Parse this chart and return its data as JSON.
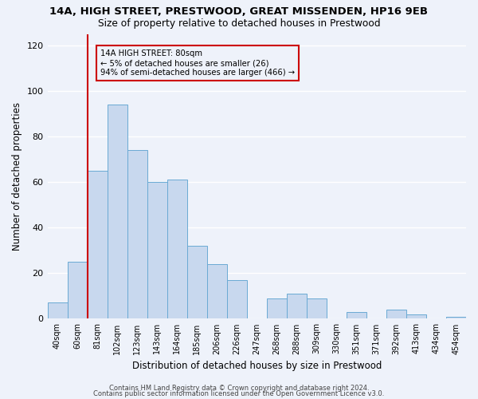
{
  "title": "14A, HIGH STREET, PRESTWOOD, GREAT MISSENDEN, HP16 9EB",
  "subtitle": "Size of property relative to detached houses in Prestwood",
  "xlabel": "Distribution of detached houses by size in Prestwood",
  "ylabel": "Number of detached properties",
  "bar_labels": [
    "40sqm",
    "60sqm",
    "81sqm",
    "102sqm",
    "123sqm",
    "143sqm",
    "164sqm",
    "185sqm",
    "206sqm",
    "226sqm",
    "247sqm",
    "268sqm",
    "288sqm",
    "309sqm",
    "330sqm",
    "351sqm",
    "371sqm",
    "392sqm",
    "413sqm",
    "434sqm",
    "454sqm"
  ],
  "bar_heights": [
    7,
    25,
    65,
    94,
    74,
    60,
    61,
    32,
    24,
    17,
    0,
    9,
    11,
    9,
    0,
    3,
    0,
    4,
    2,
    0,
    1
  ],
  "bar_color": "#c8d8ee",
  "bar_edge_color": "#6aaad4",
  "vline_x_index": 2,
  "vline_color": "#cc0000",
  "annotation_title": "14A HIGH STREET: 80sqm",
  "annotation_line1": "← 5% of detached houses are smaller (26)",
  "annotation_line2": "94% of semi-detached houses are larger (466) →",
  "annotation_box_color": "#cc0000",
  "ylim": [
    0,
    125
  ],
  "yticks": [
    0,
    20,
    40,
    60,
    80,
    100,
    120
  ],
  "footer1": "Contains HM Land Registry data © Crown copyright and database right 2024.",
  "footer2": "Contains public sector information licensed under the Open Government Licence v3.0.",
  "background_color": "#eef2fa",
  "grid_color": "#ffffff"
}
